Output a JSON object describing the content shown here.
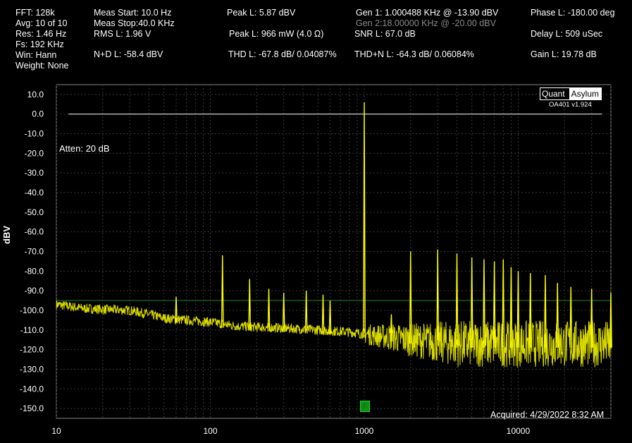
{
  "header": {
    "col1": [
      "FFT: 128k",
      "Avg: 10 of 10",
      "Res: 1.46 Hz",
      "Fs: 192 KHz",
      "Win: Hann",
      "Weight: None"
    ],
    "meas_start": "Meas Start: 10.0 Hz",
    "meas_stop": "Meas Stop:40.0 KHz",
    "rms": "RMS L: 1.96 V",
    "nd": "N+D L: -58.4 dBV",
    "peak_dbv": "Peak L: 5.87 dBV",
    "peak_mw": "Peak L: 966 mW (4.0 Ω)",
    "thd": "THD L: -67.8 dB/ 0.04087%",
    "gen1": "Gen 1: 1.000488 KHz @ -13.90  dBV",
    "gen2": "Gen 2:18.00000 KHz @ -20.00  dBV",
    "snr": "SNR L: 67.0 dB",
    "thdn": "THD+N L: -64.3 dB/ 0.06084%",
    "phase": "Phase L: -180.00 deg",
    "delay": "Delay L: 509 uSec",
    "gain": "Gain L: 19.78 dB"
  },
  "logo": {
    "left": "Quant",
    "right": "Asylum",
    "version": "OA401 v1.924"
  },
  "annotations": {
    "atten": "Atten: 20 dB",
    "acquired": "Acquired: 4/29/2022  8:32 AM",
    "marker": "F"
  },
  "colors": {
    "trace": "#ffff00",
    "grid": "#3a3a3a",
    "ref_line": "#ffffff",
    "avg_line": "#1e8a1e"
  },
  "chart_data": {
    "type": "line",
    "title": "",
    "xlabel": "",
    "ylabel": "dBV",
    "x_scale": "log",
    "xlim": [
      10,
      40000
    ],
    "ylim": [
      -155,
      15
    ],
    "x_ticks": [
      10,
      100,
      1000,
      10000
    ],
    "y_ticks": [
      10,
      0,
      -10,
      -20,
      -30,
      -40,
      -50,
      -60,
      -70,
      -80,
      -90,
      -100,
      -110,
      -120,
      -130,
      -140,
      -150
    ],
    "grid": true,
    "reference_line_dbv": 0,
    "average_floor_dbv": -95,
    "noise_floor_points": [
      [
        10,
        -97
      ],
      [
        15,
        -99
      ],
      [
        20,
        -99.5
      ],
      [
        30,
        -100
      ],
      [
        40,
        -102
      ],
      [
        50,
        -104
      ],
      [
        70,
        -105
      ],
      [
        100,
        -106
      ],
      [
        150,
        -108
      ],
      [
        200,
        -108.5
      ],
      [
        300,
        -109
      ],
      [
        500,
        -110
      ],
      [
        800,
        -111
      ],
      [
        1000,
        -112
      ],
      [
        2000,
        -115
      ],
      [
        4000,
        -117
      ],
      [
        10000,
        -117
      ],
      [
        20000,
        -117
      ],
      [
        40000,
        -117
      ]
    ],
    "series": [
      {
        "values": [
          [
            60,
            -93
          ],
          [
            120,
            -72
          ],
          [
            180,
            -84
          ],
          [
            240,
            -89
          ],
          [
            300,
            -91
          ],
          [
            420,
            -90
          ],
          [
            540,
            -92
          ],
          [
            600,
            -95
          ],
          [
            1000.5,
            6
          ],
          [
            1500,
            -102
          ],
          [
            2000,
            -70
          ],
          [
            3000,
            -69
          ],
          [
            4000,
            -71
          ],
          [
            5000,
            -73
          ],
          [
            6000,
            -74
          ],
          [
            7000,
            -75
          ],
          [
            8000,
            -74
          ],
          [
            9000,
            -78
          ],
          [
            10000,
            -80
          ],
          [
            12000,
            -81
          ],
          [
            15000,
            -82
          ],
          [
            18000,
            -86
          ],
          [
            22000,
            -88
          ],
          [
            30000,
            -89
          ],
          [
            40000,
            -91
          ]
        ]
      }
    ]
  }
}
